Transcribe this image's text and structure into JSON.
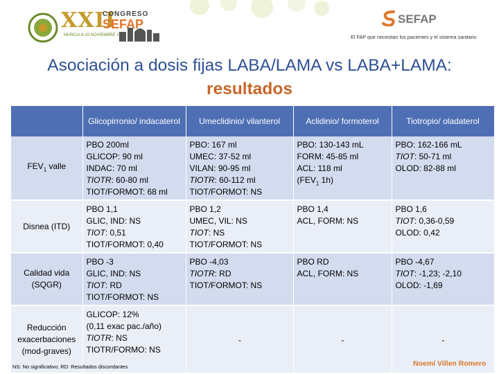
{
  "header": {
    "congress": {
      "roman": "XXII",
      "word": "CONGRESO",
      "brand": "SEFAP",
      "dates": "MURCIA 8-10 NOVIEMBRE 2017"
    },
    "org": {
      "brand": "SEFAP",
      "slogan": "El FAP que necesitan los pacientes y el sistema sanitario"
    },
    "colors": {
      "primary_blue": "#2e4f96",
      "accent_orange": "#c8672a",
      "table_header": "#4f6fb5",
      "row_dark": "#d3dbee",
      "row_light": "#eaeef7"
    }
  },
  "title": {
    "line1": "Asociación a dosis fijas LABA/LAMA vs LABA+LAMA:",
    "line2": "resultados"
  },
  "table": {
    "columns": [
      "Glicopirronio/ indacaterol",
      "Umeclidinio/ vilanterol",
      "Aclidinio/ formoterol",
      "Tiotropio/ oladaterol"
    ],
    "rows": [
      {
        "label": "FEV1 valle",
        "cells": [
          [
            [
              "PBO",
              " 200ml"
            ],
            [
              "GLICOP",
              ": 90 ml"
            ],
            [
              "INDAC",
              ": 70 ml"
            ],
            [
              "TIOTR",
              ": 60-80 ml"
            ],
            [
              "TIOT/FORMOT",
              ": 68 ml"
            ]
          ],
          [
            [
              "PBO",
              ": 167 ml"
            ],
            [
              "UMEC",
              ": 37-52 ml"
            ],
            [
              "VILAN",
              ": 90-95 ml"
            ],
            [
              "TIOTR",
              ": 60-112 ml"
            ],
            [
              "TIOT/FORMOT",
              ": NS"
            ]
          ],
          [
            [
              "PBO",
              ": 130-143 mL"
            ],
            [
              "FORM",
              ": 45-85 ml"
            ],
            [
              "ACL",
              ": 118 ml"
            ],
            [
              "",
              "(FEV1 1h)"
            ]
          ],
          [
            [
              "PBO",
              ": 162-166 mL"
            ],
            [
              "TIOT",
              ": 50-71 ml"
            ],
            [
              "OLOD",
              ": 82-88 ml"
            ]
          ]
        ]
      },
      {
        "label": "Disnea (ITD)",
        "cells": [
          [
            [
              "PBO",
              " 1,1"
            ],
            [
              "GLIC, IND",
              ": NS"
            ],
            [
              "TIOT",
              ": 0,51"
            ],
            [
              "TIOT/FORMOT",
              ": 0,40"
            ]
          ],
          [
            [
              "PBO",
              " 1,2"
            ],
            [
              "UMEC, VIL",
              ": NS"
            ],
            [
              "TIOT",
              ": NS"
            ],
            [
              "TIOT/FORMOT",
              ": NS"
            ]
          ],
          [
            [
              "PBO",
              " 1,4"
            ],
            [
              "ACL, FORM",
              ": NS"
            ]
          ],
          [
            [
              "PBO",
              " 1,6"
            ],
            [
              "TIOT",
              ": 0,36-0,59"
            ],
            [
              "OLOD",
              ": 0,42"
            ]
          ]
        ]
      },
      {
        "label": "Calidad vida (SQGR)",
        "cells": [
          [
            [
              "PBO",
              " -3"
            ],
            [
              "GLIC, IND",
              ": NS"
            ],
            [
              "TIOT",
              ": RD"
            ],
            [
              "TIOT/FORMOT",
              ": NS"
            ]
          ],
          [
            [
              "PBO",
              " -4,03"
            ],
            [
              "TIOTR",
              ": RD"
            ],
            [
              "TIOT/FORMOT",
              ": NS"
            ]
          ],
          [
            [
              "PBO",
              " RD"
            ],
            [
              "ACL, FORM",
              ": NS"
            ]
          ],
          [
            [
              "PBO",
              " -4,67"
            ],
            [
              "TIOT",
              ": -1,23; -2,10"
            ],
            [
              "OLOD",
              ": -1,69"
            ]
          ]
        ]
      },
      {
        "label": "Reducción exacerbaciones (mod-graves)",
        "cells": [
          [
            [
              "GLICOP",
              ": 12%"
            ],
            [
              "",
              "(0,11 exac pac./año)"
            ],
            [
              "TIOTR",
              ": NS"
            ],
            [
              "TIOTR/FORMO",
              ": NS"
            ]
          ],
          "-",
          "-",
          "-"
        ]
      }
    ]
  },
  "footnote": "NS: No significativo; RD: Resultados discordantes",
  "author": "Noemí Villen Romero"
}
